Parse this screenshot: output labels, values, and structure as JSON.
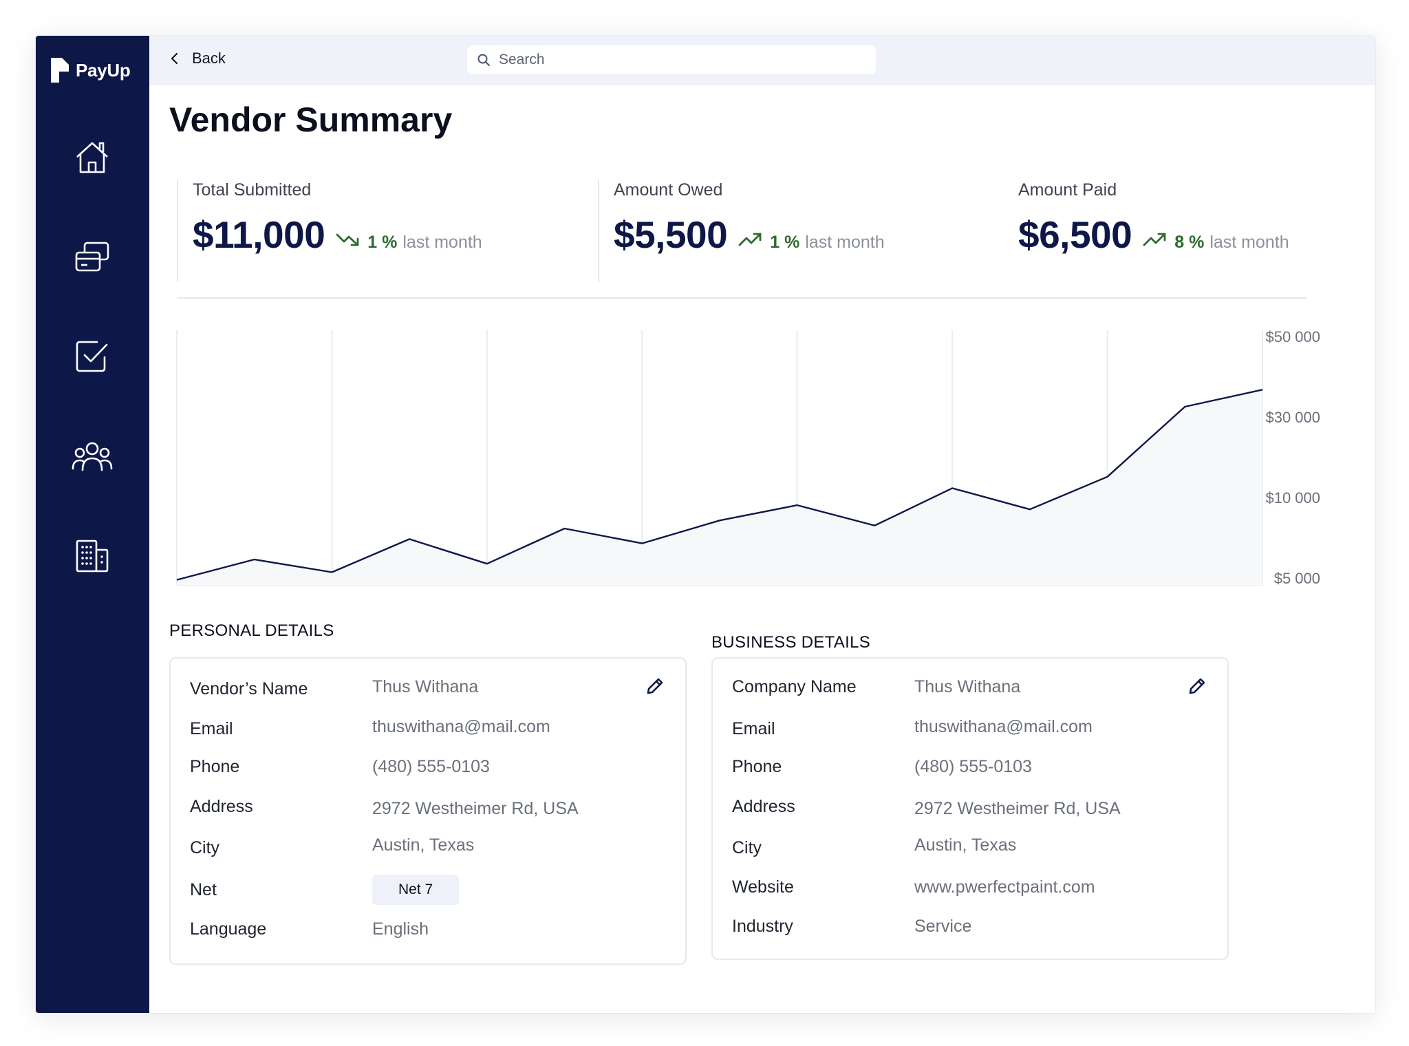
{
  "app": {
    "name": "PayUp"
  },
  "sidebar": {
    "items": [
      {
        "icon": "home-icon"
      },
      {
        "icon": "cards-icon"
      },
      {
        "icon": "checkbox-icon"
      },
      {
        "icon": "users-icon"
      },
      {
        "icon": "building-icon"
      }
    ]
  },
  "topbar": {
    "back_label": "Back",
    "search_placeholder": "Search"
  },
  "page": {
    "title": "Vendor Summary"
  },
  "stats": [
    {
      "label": "Total Submitted",
      "value": "$11,000",
      "trend": "down",
      "pct": "1 %",
      "note": "last month"
    },
    {
      "label": "Amount Owed",
      "value": "$5,500",
      "trend": "up",
      "pct": "1 %",
      "note": "last month"
    },
    {
      "label": "Amount Paid",
      "value": "$6,500",
      "trend": "up",
      "pct": "8 %",
      "note": "last month"
    }
  ],
  "chart_data": {
    "type": "area",
    "y_ticks": [
      "$50 000",
      "$30 000",
      "$10 000",
      "$5 000"
    ],
    "values": [
      1200,
      6000,
      3000,
      10800,
      5000,
      13300,
      9800,
      15200,
      18800,
      14000,
      22800,
      17800,
      25500,
      42000,
      46000
    ],
    "grid": true
  },
  "personal": {
    "title": "PERSONAL DETAILS",
    "name_label": "Vendor’s Name",
    "name": "Thus Withana",
    "email_label": "Email",
    "email": "thuswithana@mail.com",
    "phone_label": "Phone",
    "phone": "(480) 555-0103",
    "address_label": "Address",
    "address": "2972 Westheimer Rd, USA",
    "city_label": "City",
    "city": "Austin, Texas",
    "net_label": "Net",
    "net": "Net 7",
    "language_label": "Language",
    "language": "English"
  },
  "business": {
    "title": "BUSINESS DETAILS",
    "company_label": "Company Name",
    "company": "Thus Withana",
    "email_label": "Email",
    "email": "thuswithana@mail.com",
    "phone_label": "Phone",
    "phone": "(480) 555-0103",
    "address_label": "Address",
    "address": "2972 Westheimer Rd, USA",
    "city_label": "City",
    "city": "Austin, Texas",
    "website_label": "Website",
    "website": "www.pwerfectpaint.com",
    "industry_label": "Industry",
    "industry": "Service"
  }
}
